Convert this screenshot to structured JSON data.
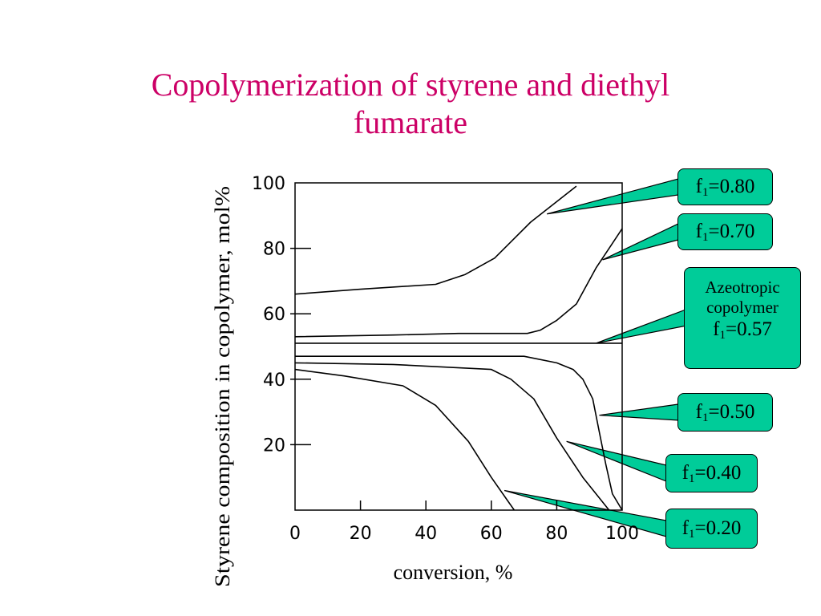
{
  "slide": {
    "title_line1": "Copolymerization of styrene and diethyl",
    "title_line2": "fumarate"
  },
  "colors": {
    "title": "#cc0066",
    "callout_fill": "#00cc99",
    "line": "#000000"
  },
  "chart_data": {
    "type": "line",
    "xlabel": "conversion, %",
    "ylabel": "Styrene composition in copolymer, mol%",
    "xlim": [
      0,
      100
    ],
    "ylim": [
      0,
      100
    ],
    "xticks": [
      0,
      20,
      40,
      60,
      80,
      100
    ],
    "yticks": [
      20,
      40,
      60,
      80,
      100
    ],
    "grid": false,
    "series": [
      {
        "name": "f1=0.80",
        "x": [
          0,
          20,
          43,
          52,
          61,
          72,
          86
        ],
        "y": [
          66,
          67.5,
          69,
          72,
          77,
          88,
          99
        ]
      },
      {
        "name": "f1=0.70",
        "x": [
          0,
          30,
          50,
          71,
          75,
          80,
          86,
          92,
          100
        ],
        "y": [
          53,
          53.5,
          54,
          54,
          55,
          58,
          63,
          74,
          86
        ]
      },
      {
        "name": "f1=0.57",
        "x": [
          0,
          100
        ],
        "y": [
          51,
          51
        ]
      },
      {
        "name": "f1=0.50",
        "x": [
          0,
          40,
          70,
          80,
          85,
          88,
          91,
          93,
          95,
          97,
          100
        ],
        "y": [
          47,
          47,
          47,
          45,
          43,
          40,
          34,
          24,
          14,
          5,
          0
        ]
      },
      {
        "name": "f1=0.40",
        "x": [
          0,
          30,
          60,
          66,
          73,
          80,
          88,
          96
        ],
        "y": [
          45,
          44.5,
          43,
          40,
          34,
          22,
          10,
          0
        ]
      },
      {
        "name": "f1=0.20",
        "x": [
          0,
          15,
          33,
          43,
          53,
          60,
          67
        ],
        "y": [
          43,
          41,
          38,
          32,
          21,
          10,
          0
        ]
      }
    ],
    "callouts": [
      {
        "text": "f1=0.80",
        "target_x": 77,
        "target_y": 90.5
      },
      {
        "text": "f1=0.70",
        "target_x": 94,
        "target_y": 76.5
      },
      {
        "text": "Azeotropic copolymer f1=0.57",
        "target_x": 92,
        "target_y": 51
      },
      {
        "text": "f1=0.50",
        "target_x": 93,
        "target_y": 29
      },
      {
        "text": "f1=0.40",
        "target_x": 83,
        "target_y": 21
      },
      {
        "text": "f1=0.20",
        "target_x": 64,
        "target_y": 6
      }
    ]
  }
}
